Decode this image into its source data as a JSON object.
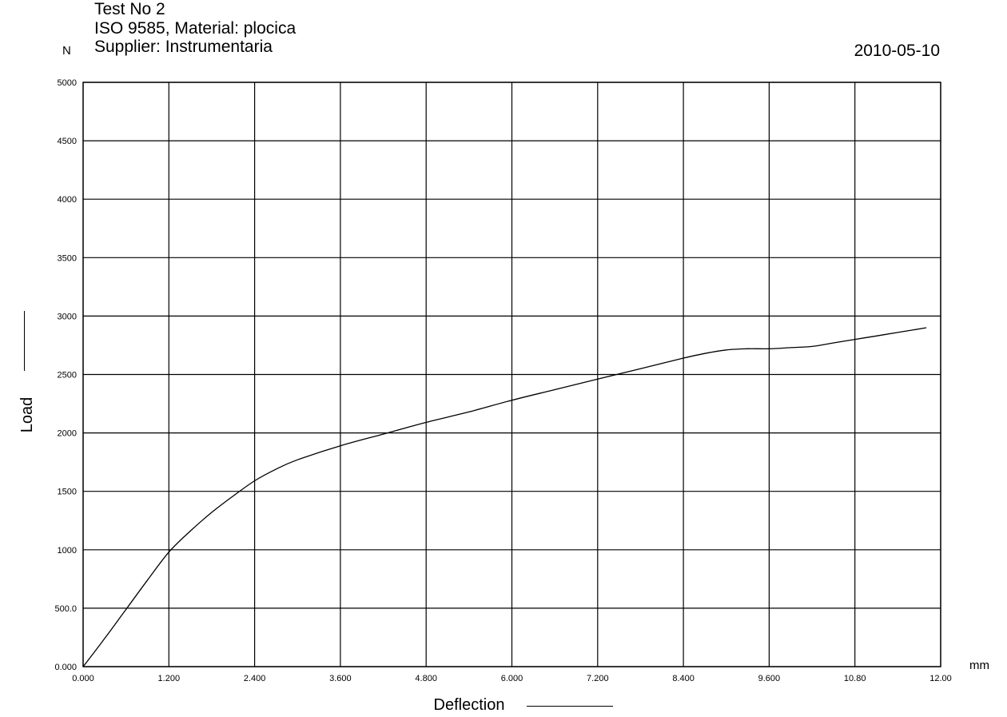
{
  "header": {
    "title": "Test No  2",
    "standard": "ISO 9585, Material: plocica",
    "supplier": "Supplier: Instrumentaria",
    "date": "2010-05-10"
  },
  "chart_data": {
    "type": "line",
    "xlabel": "Deflection",
    "ylabel": "Load",
    "x_unit": "mm",
    "y_unit": "N",
    "xlim": [
      0,
      12
    ],
    "ylim": [
      0,
      5000
    ],
    "grid": true,
    "x_tick_labels": [
      "0.000",
      "1.200",
      "2.400",
      "3.600",
      "4.800",
      "6.000",
      "7.200",
      "8.400",
      "9.600",
      "10.80",
      "12.00"
    ],
    "y_tick_labels": [
      "0.000",
      "500.0",
      "1000",
      "1500",
      "2000",
      "2500",
      "3000",
      "3500",
      "4000",
      "4500",
      "5000"
    ],
    "line_color": "#000000",
    "series": [
      {
        "x": [
          0,
          0.3,
          0.6,
          0.9,
          1.2,
          1.5,
          1.8,
          2.1,
          2.4,
          2.7,
          3.0,
          3.6,
          4.2,
          4.8,
          5.4,
          6.0,
          6.6,
          7.2,
          7.8,
          8.4,
          8.7,
          9.0,
          9.3,
          9.6,
          9.9,
          10.2,
          10.5,
          10.8,
          11.1,
          11.4,
          11.8
        ],
        "y": [
          0,
          240,
          490,
          740,
          980,
          1160,
          1320,
          1460,
          1590,
          1690,
          1770,
          1890,
          1990,
          2090,
          2180,
          2280,
          2370,
          2460,
          2550,
          2640,
          2680,
          2710,
          2720,
          2720,
          2730,
          2740,
          2770,
          2800,
          2830,
          2860,
          2900
        ]
      }
    ]
  }
}
